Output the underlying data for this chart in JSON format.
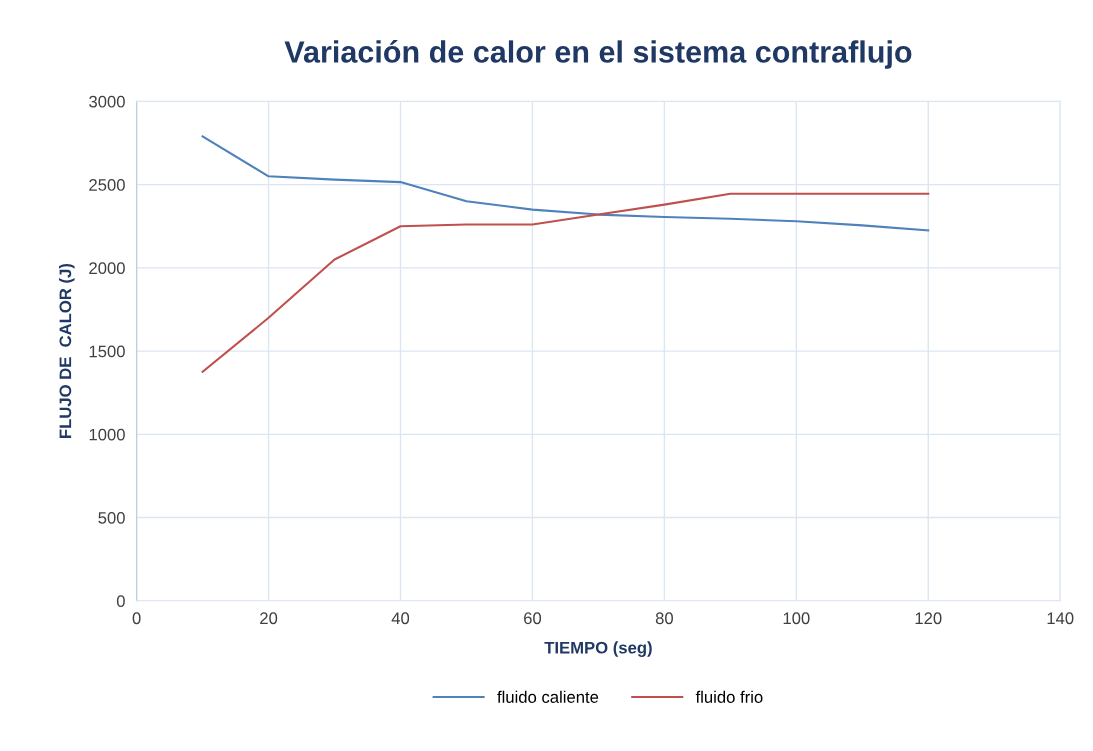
{
  "chart_data": {
    "type": "line",
    "title": "Variación de calor en el sistema contraflujo",
    "xlabel": "TIEMPO (seg)",
    "ylabel": "FLUJO DE  CALOR (J)",
    "x": [
      10,
      20,
      30,
      40,
      50,
      60,
      70,
      80,
      90,
      100,
      110,
      120
    ],
    "series": [
      {
        "name": "fluido caliente",
        "color": "#4f81bd",
        "values": [
          2790,
          2550,
          2530,
          2515,
          2400,
          2350,
          2320,
          2305,
          2295,
          2280,
          2255,
          2225
        ]
      },
      {
        "name": "fluido frio",
        "color": "#c0504d",
        "values": [
          1375,
          1700,
          2050,
          2250,
          2260,
          2260,
          2320,
          2380,
          2445,
          2445,
          2445,
          2445
        ]
      }
    ],
    "xlim": [
      0,
      140
    ],
    "xticks": [
      0,
      20,
      40,
      60,
      80,
      100,
      120,
      140
    ],
    "ylim": [
      0,
      3000
    ],
    "yticks": [
      0,
      500,
      1000,
      1500,
      2000,
      2500,
      3000
    ],
    "grid": true,
    "legend": "bottom",
    "marker": "none",
    "line_style": "solid"
  }
}
